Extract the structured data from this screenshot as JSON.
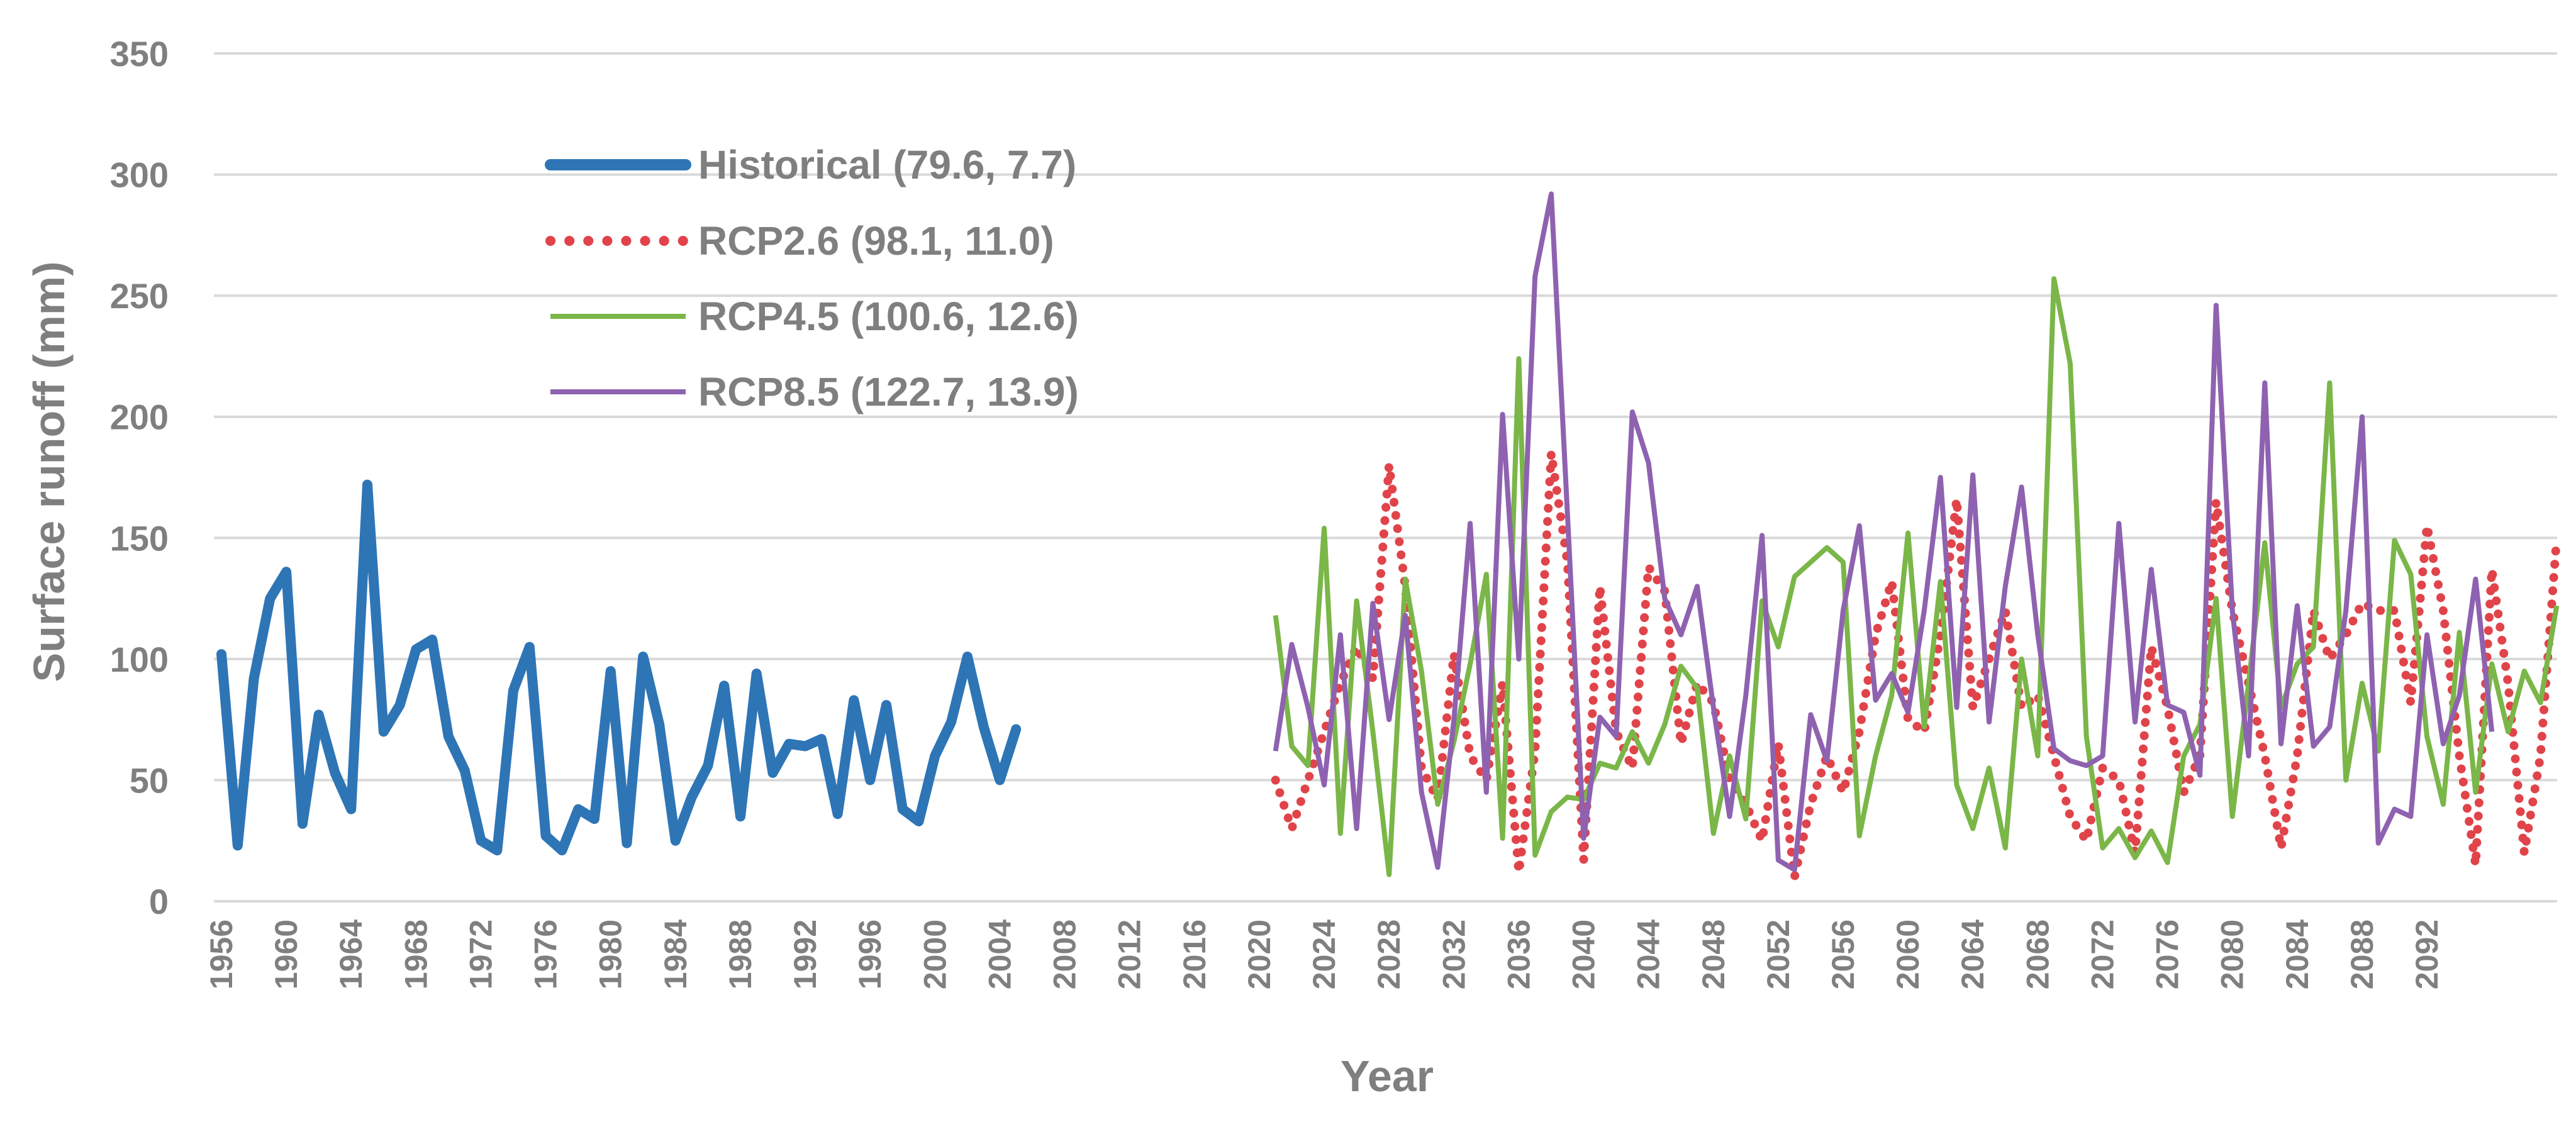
{
  "chart_data": {
    "type": "line",
    "title": "",
    "xlabel": "Year",
    "ylabel": "Surface runoff (mm)",
    "ylim": [
      0,
      350
    ],
    "yticks": [
      0,
      50,
      100,
      150,
      200,
      250,
      300,
      350
    ],
    "xlim": [
      1956,
      2095
    ],
    "xticks": [
      1956,
      1960,
      1964,
      1968,
      1972,
      1976,
      1980,
      1984,
      1988,
      1992,
      1996,
      2000,
      2004,
      2008,
      2012,
      2016,
      2020,
      2024,
      2028,
      2032,
      2036,
      2040,
      2044,
      2048,
      2052,
      2056,
      2060,
      2064,
      2068,
      2072,
      2076,
      2080,
      2084,
      2088,
      2092
    ],
    "legend_position": "top-left",
    "series": [
      {
        "name": "Historical (79.6, 7.7)",
        "color": "#2e75b6",
        "style": "solid-thick",
        "start_year": 1956,
        "values": [
          102,
          23,
          92,
          125,
          136,
          32,
          77,
          53,
          38,
          172,
          70,
          81,
          104,
          108,
          68,
          54,
          25,
          21,
          87,
          105,
          27,
          21,
          38,
          34,
          95,
          24,
          101,
          73,
          25,
          43,
          56,
          89,
          35,
          94,
          53,
          65,
          64,
          67,
          36,
          83,
          50,
          81,
          38,
          33,
          60,
          74,
          101,
          72,
          50,
          71
        ]
      },
      {
        "name": "RCP2.6 (98.1, 11.0)",
        "color": "#e0444a",
        "style": "dotted",
        "start_year": 2021,
        "values": [
          50,
          30,
          50,
          70,
          90,
          105,
          92,
          180,
          130,
          55,
          42,
          102,
          60,
          50,
          90,
          12,
          62,
          185,
          140,
          17,
          130,
          70,
          55,
          138,
          128,
          65,
          90,
          82,
          50,
          40,
          25,
          65,
          10,
          40,
          60,
          45,
          70,
          110,
          132,
          75,
          70,
          110,
          166,
          80,
          100,
          120,
          80,
          85,
          60,
          35,
          25,
          55,
          50,
          20,
          105,
          80,
          45,
          60,
          165,
          120,
          90,
          60,
          22,
          60,
          120,
          100,
          110,
          123,
          120,
          120,
          82,
          155,
          120,
          60,
          15,
          137,
          90,
          20,
          60,
          150
        ]
      },
      {
        "name": "RCP4.5 (100.6, 12.6)",
        "color": "#7ab648",
        "style": "solid",
        "start_year": 2021,
        "values": [
          118,
          64,
          56,
          154,
          28,
          124,
          70,
          11,
          133,
          95,
          40,
          66,
          98,
          135,
          26,
          224,
          19,
          37,
          43,
          42,
          57,
          55,
          70,
          57,
          73,
          97,
          88,
          28,
          60,
          34,
          124,
          105,
          134,
          140,
          146,
          140,
          27,
          60,
          85,
          152,
          72,
          132,
          48,
          30,
          55,
          22,
          100,
          60,
          257,
          222,
          68,
          22,
          30,
          18,
          29,
          16,
          60,
          73,
          125,
          35,
          90,
          148,
          80,
          98,
          105,
          214,
          50,
          90,
          62,
          149,
          135,
          68,
          40,
          111,
          45,
          98,
          70,
          95,
          82,
          122
        ]
      },
      {
        "name": "RCP8.5 (122.7, 13.9)",
        "color": "#8e62b0",
        "style": "solid",
        "start_year": 2021,
        "values": [
          62,
          106,
          80,
          48,
          110,
          30,
          123,
          75,
          118,
          45,
          14,
          75,
          156,
          45,
          201,
          100,
          258,
          292,
          160,
          26,
          76,
          68,
          202,
          181,
          125,
          110,
          130,
          80,
          35,
          85,
          151,
          17,
          13,
          77,
          58,
          120,
          155,
          83,
          94,
          78,
          120,
          175,
          80,
          176,
          74,
          130,
          171,
          110,
          63,
          58,
          56,
          60,
          156,
          74,
          137,
          81,
          78,
          52,
          246,
          120,
          60,
          214,
          65,
          122,
          64,
          72,
          120,
          200,
          24,
          38,
          35,
          110,
          65,
          85,
          133,
          70
        ]
      }
    ]
  }
}
